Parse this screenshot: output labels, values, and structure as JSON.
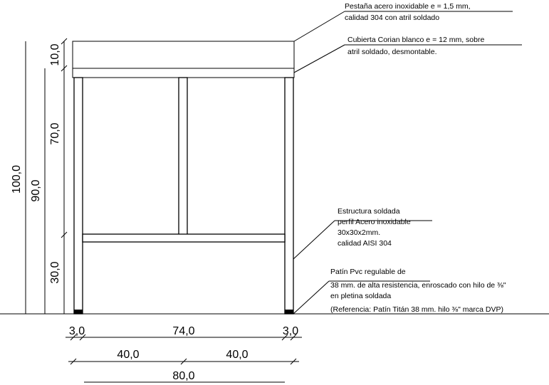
{
  "annotations": {
    "pestana_line1": "Pestaña acero inoxidable e = 1,5 mm,",
    "pestana_line2": "calidad 304 con atril soldado",
    "cubierta_line1": "Cubierta Corian blanco e = 12 mm, sobre",
    "cubierta_line2": "atril soldado, desmontable.",
    "estructura_line1": "Estructura soldada",
    "estructura_line2": "perfil Acero inoxidable",
    "estructura_line3": "30x30x2mm.",
    "estructura_line4": "calidad AISI 304",
    "patin_line1": "Patín Pvc regulable de",
    "patin_line2": "38 mm. de alta resistencia, enroscado con hilo de ⅜\"",
    "patin_line3": "en pletina soldada",
    "patin_line4": "(Referencia: Patín Titán 38 mm. hilo ⅜\" marca DVP)"
  },
  "dimensions": {
    "vertical_total": "100,0",
    "vertical_body": "90,0",
    "vertical_top": "10,0",
    "vertical_upper": "70,0",
    "vertical_lower": "30,0",
    "horizontal_left_leg": "3,0",
    "horizontal_middle": "74,0",
    "horizontal_right_leg": "3,0",
    "horizontal_half_left": "40,0",
    "horizontal_half_right": "40,0",
    "horizontal_total": "80,0"
  }
}
